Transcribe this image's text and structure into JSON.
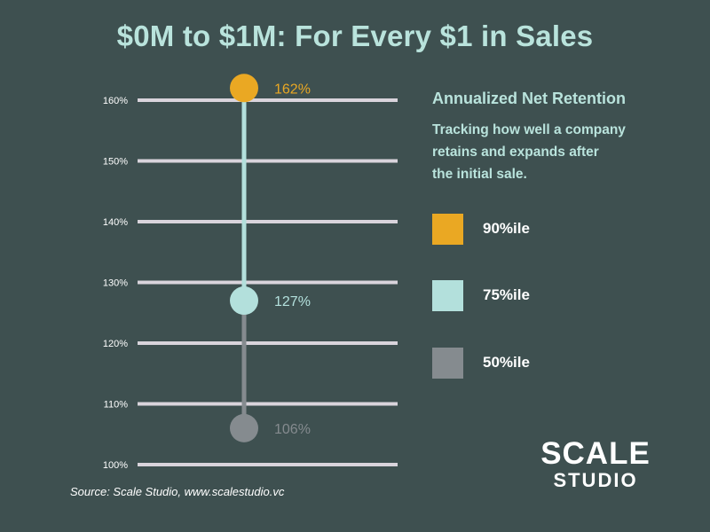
{
  "title": "$0M to $1M: For Every $1 in Sales",
  "legend": {
    "title": "Annualized Net Retention",
    "description": "Tracking how well a company\nretains  and expands after\nthe initial sale.",
    "items": [
      {
        "label": "90%ile",
        "color": "#eaa823"
      },
      {
        "label": "75%ile",
        "color": "#b3e0dc"
      },
      {
        "label": "50%ile",
        "color": "#858b8f"
      }
    ]
  },
  "source": "Source: Scale Studio, www.scalestudio.vc",
  "brand": {
    "line1": "SCALE",
    "line2": "STUDIO"
  },
  "colors": {
    "background": "#3e5050",
    "gridline": "#d9d4dc",
    "axis_text": "#ffffff",
    "title": "#b9e3dc"
  },
  "chart_data": {
    "type": "dot_plot",
    "title": "$0M to $1M: For Every $1 in Sales",
    "y_axis": {
      "ticks": [
        100,
        110,
        120,
        130,
        140,
        150,
        160
      ],
      "tick_labels": [
        "100%",
        "110%",
        "120%",
        "130%",
        "140%",
        "150%",
        "160%"
      ],
      "range": [
        100,
        162
      ]
    },
    "grid": true,
    "legend_position": "right",
    "series": [
      {
        "name": "90%ile",
        "value": 162,
        "label": "162%",
        "color": "#eaa823"
      },
      {
        "name": "75%ile",
        "value": 127,
        "label": "127%",
        "color": "#b3e0dc"
      },
      {
        "name": "50%ile",
        "value": 106,
        "label": "106%",
        "color": "#858b8f"
      }
    ]
  }
}
